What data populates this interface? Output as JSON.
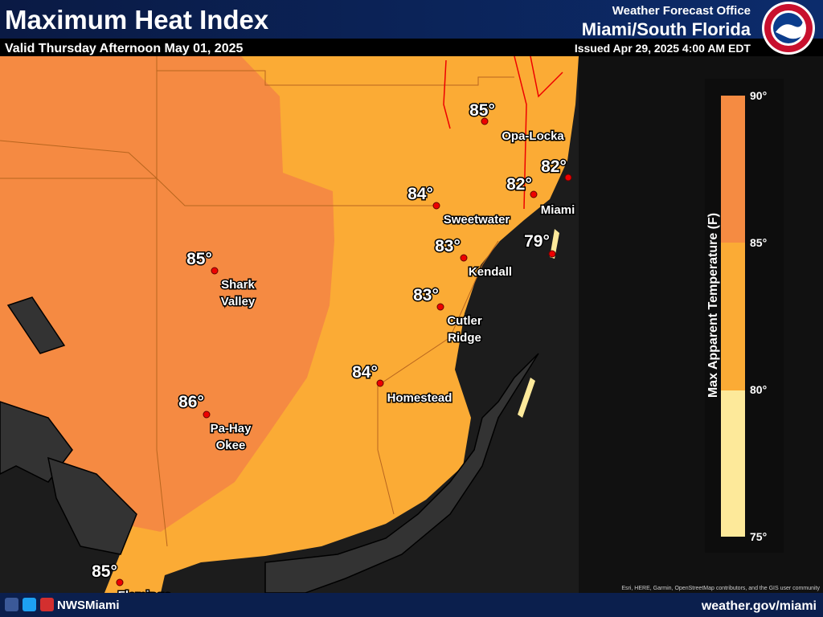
{
  "header": {
    "title": "Maximum Heat Index",
    "subtitle": "Valid Thursday Afternoon May 01, 2025",
    "office_line": "Weather Forecast Office",
    "office": "Miami/South Florida",
    "issued": "Issued Apr 29, 2025 4:00 AM EDT"
  },
  "points": [
    {
      "temp": "85°",
      "name": [
        "Opa-Locka"
      ]
    },
    {
      "temp": "82°"
    },
    {
      "temp": "82°",
      "name": [
        "Miami"
      ]
    },
    {
      "temp": "79°"
    },
    {
      "temp": "84°",
      "name": [
        "Sweetwater"
      ]
    },
    {
      "temp": "83°",
      "name": [
        "Kendall"
      ]
    },
    {
      "temp": "83°",
      "name": [
        "Cutler",
        "Ridge"
      ]
    },
    {
      "temp": "84°",
      "name": [
        "Homestead"
      ]
    },
    {
      "temp": "85°",
      "name": [
        "Shark",
        "Valley"
      ]
    },
    {
      "temp": "86°",
      "name": [
        "Pa-Hay",
        "Okee"
      ]
    },
    {
      "temp": "85°",
      "name": [
        "Flamingo"
      ]
    }
  ],
  "legend": {
    "title": "Max Apparent Temperature (F)",
    "ticks": [
      "90°",
      "85°",
      "80°",
      "75°"
    ]
  },
  "footer": {
    "handle": "NWSMiami",
    "url": "weather.gov/miami",
    "attribution": "Esri, HERE, Garmin, OpenStreetMap contributors, and the GIS user community"
  }
}
